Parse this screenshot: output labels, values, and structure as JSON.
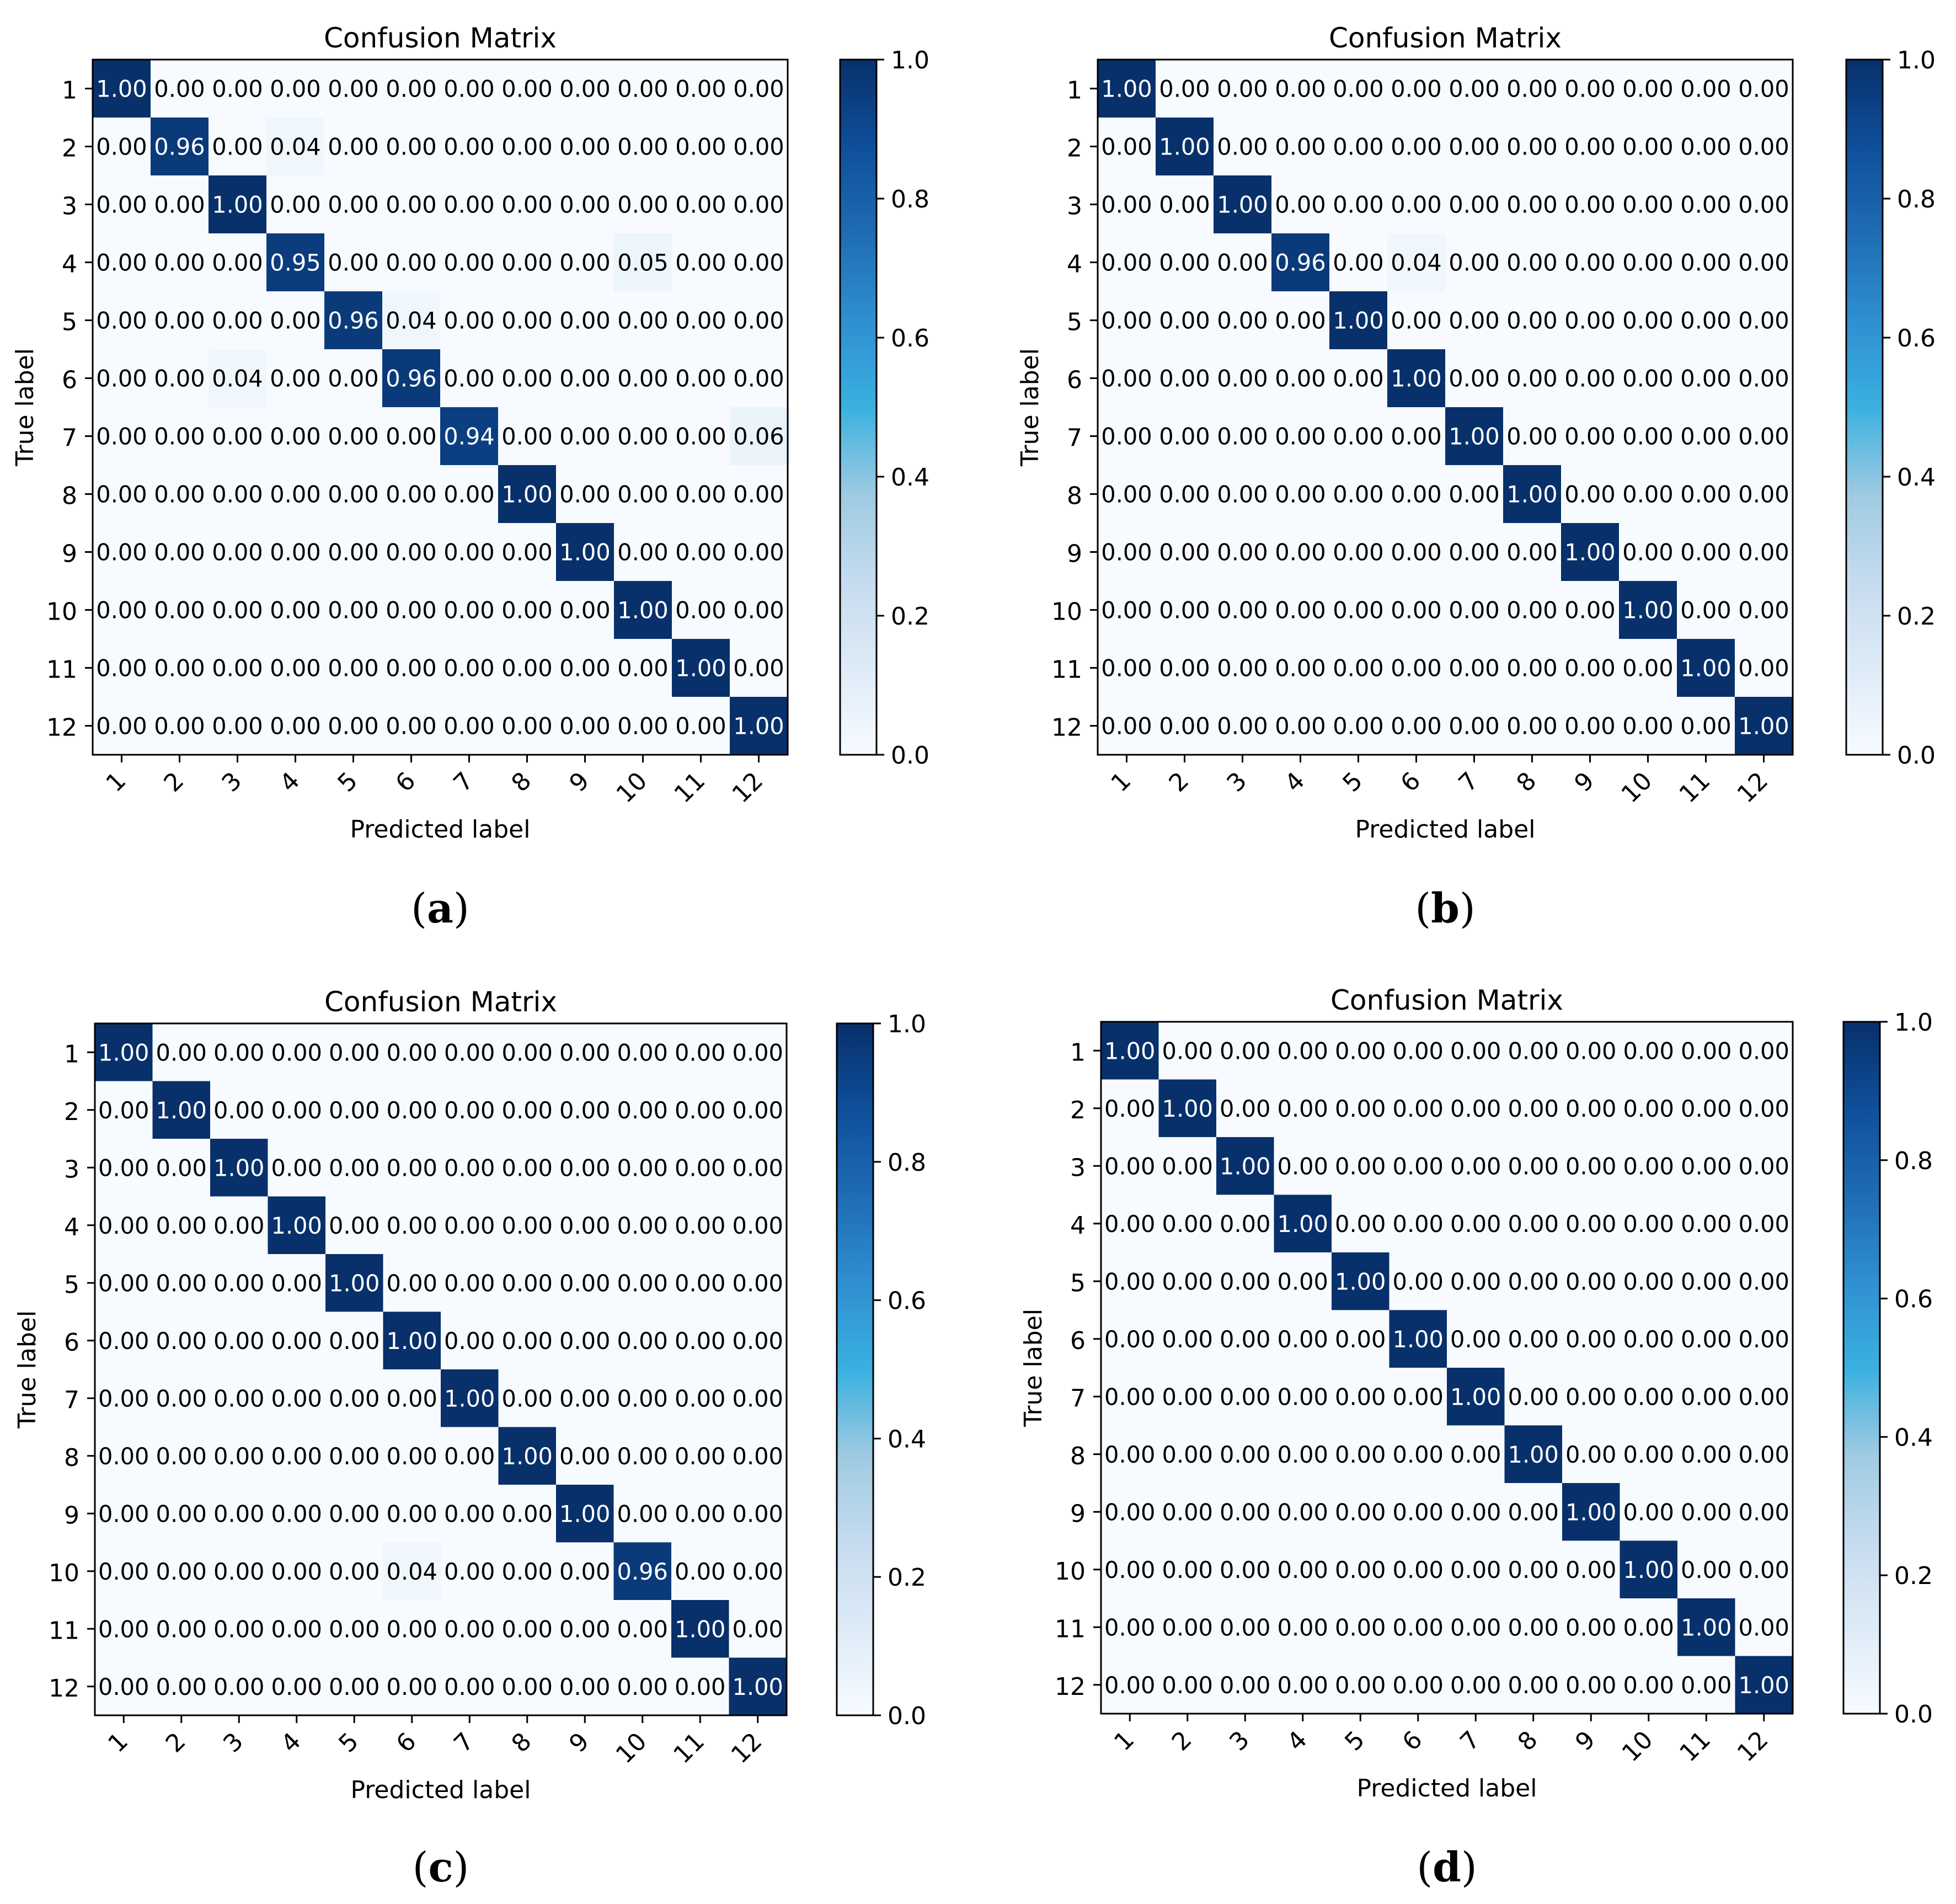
{
  "labels": [
    "1",
    "2",
    "3",
    "4",
    "5",
    "6",
    "7",
    "8",
    "9",
    "10",
    "11",
    "12"
  ],
  "colormap": {
    "name": "Blues",
    "stops": [
      [
        0.0,
        "#f7fbff"
      ],
      [
        0.125,
        "#deebf7"
      ],
      [
        0.25,
        "#c6dbef"
      ],
      [
        0.375,
        "#9ecae1"
      ],
      [
        0.5,
        "#3ab0e0"
      ],
      [
        0.625,
        "#2f8fd0"
      ],
      [
        0.75,
        "#1f6cb4"
      ],
      [
        0.875,
        "#0e4f9a"
      ],
      [
        1.0,
        "#08306b"
      ]
    ],
    "colorbar_ticks": [
      "0.0",
      "0.2",
      "0.4",
      "0.6",
      "0.8",
      "1.0"
    ],
    "text_light": "#ffffff",
    "text_dark": "#000000"
  },
  "chart_data": [
    {
      "type": "heatmap",
      "panel": "a",
      "caption": "a",
      "title": "Confusion Matrix",
      "xlabel": "Predicted label",
      "ylabel": "True label",
      "vrange": [
        0.0,
        1.0
      ],
      "matrix": [
        [
          1.0,
          0.0,
          0.0,
          0.0,
          0.0,
          0.0,
          0.0,
          0.0,
          0.0,
          0.0,
          0.0,
          0.0
        ],
        [
          0.0,
          0.96,
          0.0,
          0.04,
          0.0,
          0.0,
          0.0,
          0.0,
          0.0,
          0.0,
          0.0,
          0.0
        ],
        [
          0.0,
          0.0,
          1.0,
          0.0,
          0.0,
          0.0,
          0.0,
          0.0,
          0.0,
          0.0,
          0.0,
          0.0
        ],
        [
          0.0,
          0.0,
          0.0,
          0.95,
          0.0,
          0.0,
          0.0,
          0.0,
          0.0,
          0.05,
          0.0,
          0.0
        ],
        [
          0.0,
          0.0,
          0.0,
          0.0,
          0.96,
          0.04,
          0.0,
          0.0,
          0.0,
          0.0,
          0.0,
          0.0
        ],
        [
          0.0,
          0.0,
          0.04,
          0.0,
          0.0,
          0.96,
          0.0,
          0.0,
          0.0,
          0.0,
          0.0,
          0.0
        ],
        [
          0.0,
          0.0,
          0.0,
          0.0,
          0.0,
          0.0,
          0.94,
          0.0,
          0.0,
          0.0,
          0.0,
          0.06
        ],
        [
          0.0,
          0.0,
          0.0,
          0.0,
          0.0,
          0.0,
          0.0,
          1.0,
          0.0,
          0.0,
          0.0,
          0.0
        ],
        [
          0.0,
          0.0,
          0.0,
          0.0,
          0.0,
          0.0,
          0.0,
          0.0,
          1.0,
          0.0,
          0.0,
          0.0
        ],
        [
          0.0,
          0.0,
          0.0,
          0.0,
          0.0,
          0.0,
          0.0,
          0.0,
          0.0,
          1.0,
          0.0,
          0.0
        ],
        [
          0.0,
          0.0,
          0.0,
          0.0,
          0.0,
          0.0,
          0.0,
          0.0,
          0.0,
          0.0,
          1.0,
          0.0
        ],
        [
          0.0,
          0.0,
          0.0,
          0.0,
          0.0,
          0.0,
          0.0,
          0.0,
          0.0,
          0.0,
          0.0,
          1.0
        ]
      ]
    },
    {
      "type": "heatmap",
      "panel": "b",
      "caption": "b",
      "title": "Confusion Matrix",
      "xlabel": "Predicted label",
      "ylabel": "True label",
      "vrange": [
        0.0,
        1.0
      ],
      "matrix": [
        [
          1.0,
          0.0,
          0.0,
          0.0,
          0.0,
          0.0,
          0.0,
          0.0,
          0.0,
          0.0,
          0.0,
          0.0
        ],
        [
          0.0,
          1.0,
          0.0,
          0.0,
          0.0,
          0.0,
          0.0,
          0.0,
          0.0,
          0.0,
          0.0,
          0.0
        ],
        [
          0.0,
          0.0,
          1.0,
          0.0,
          0.0,
          0.0,
          0.0,
          0.0,
          0.0,
          0.0,
          0.0,
          0.0
        ],
        [
          0.0,
          0.0,
          0.0,
          0.96,
          0.0,
          0.04,
          0.0,
          0.0,
          0.0,
          0.0,
          0.0,
          0.0
        ],
        [
          0.0,
          0.0,
          0.0,
          0.0,
          1.0,
          0.0,
          0.0,
          0.0,
          0.0,
          0.0,
          0.0,
          0.0
        ],
        [
          0.0,
          0.0,
          0.0,
          0.0,
          0.0,
          1.0,
          0.0,
          0.0,
          0.0,
          0.0,
          0.0,
          0.0
        ],
        [
          0.0,
          0.0,
          0.0,
          0.0,
          0.0,
          0.0,
          1.0,
          0.0,
          0.0,
          0.0,
          0.0,
          0.0
        ],
        [
          0.0,
          0.0,
          0.0,
          0.0,
          0.0,
          0.0,
          0.0,
          1.0,
          0.0,
          0.0,
          0.0,
          0.0
        ],
        [
          0.0,
          0.0,
          0.0,
          0.0,
          0.0,
          0.0,
          0.0,
          0.0,
          1.0,
          0.0,
          0.0,
          0.0
        ],
        [
          0.0,
          0.0,
          0.0,
          0.0,
          0.0,
          0.0,
          0.0,
          0.0,
          0.0,
          1.0,
          0.0,
          0.0
        ],
        [
          0.0,
          0.0,
          0.0,
          0.0,
          0.0,
          0.0,
          0.0,
          0.0,
          0.0,
          0.0,
          1.0,
          0.0
        ],
        [
          0.0,
          0.0,
          0.0,
          0.0,
          0.0,
          0.0,
          0.0,
          0.0,
          0.0,
          0.0,
          0.0,
          1.0
        ]
      ]
    },
    {
      "type": "heatmap",
      "panel": "c",
      "caption": "c",
      "title": "Confusion Matrix",
      "xlabel": "Predicted label",
      "ylabel": "True label",
      "vrange": [
        0.0,
        1.0
      ],
      "matrix": [
        [
          1.0,
          0.0,
          0.0,
          0.0,
          0.0,
          0.0,
          0.0,
          0.0,
          0.0,
          0.0,
          0.0,
          0.0
        ],
        [
          0.0,
          1.0,
          0.0,
          0.0,
          0.0,
          0.0,
          0.0,
          0.0,
          0.0,
          0.0,
          0.0,
          0.0
        ],
        [
          0.0,
          0.0,
          1.0,
          0.0,
          0.0,
          0.0,
          0.0,
          0.0,
          0.0,
          0.0,
          0.0,
          0.0
        ],
        [
          0.0,
          0.0,
          0.0,
          1.0,
          0.0,
          0.0,
          0.0,
          0.0,
          0.0,
          0.0,
          0.0,
          0.0
        ],
        [
          0.0,
          0.0,
          0.0,
          0.0,
          1.0,
          0.0,
          0.0,
          0.0,
          0.0,
          0.0,
          0.0,
          0.0
        ],
        [
          0.0,
          0.0,
          0.0,
          0.0,
          0.0,
          1.0,
          0.0,
          0.0,
          0.0,
          0.0,
          0.0,
          0.0
        ],
        [
          0.0,
          0.0,
          0.0,
          0.0,
          0.0,
          0.0,
          1.0,
          0.0,
          0.0,
          0.0,
          0.0,
          0.0
        ],
        [
          0.0,
          0.0,
          0.0,
          0.0,
          0.0,
          0.0,
          0.0,
          1.0,
          0.0,
          0.0,
          0.0,
          0.0
        ],
        [
          0.0,
          0.0,
          0.0,
          0.0,
          0.0,
          0.0,
          0.0,
          0.0,
          1.0,
          0.0,
          0.0,
          0.0
        ],
        [
          0.0,
          0.0,
          0.0,
          0.0,
          0.0,
          0.04,
          0.0,
          0.0,
          0.0,
          0.96,
          0.0,
          0.0
        ],
        [
          0.0,
          0.0,
          0.0,
          0.0,
          0.0,
          0.0,
          0.0,
          0.0,
          0.0,
          0.0,
          1.0,
          0.0
        ],
        [
          0.0,
          0.0,
          0.0,
          0.0,
          0.0,
          0.0,
          0.0,
          0.0,
          0.0,
          0.0,
          0.0,
          1.0
        ]
      ]
    },
    {
      "type": "heatmap",
      "panel": "d",
      "caption": "d",
      "title": "Confusion Matrix",
      "xlabel": "Predicted label",
      "ylabel": "True label",
      "vrange": [
        0.0,
        1.0
      ],
      "matrix": [
        [
          1.0,
          0.0,
          0.0,
          0.0,
          0.0,
          0.0,
          0.0,
          0.0,
          0.0,
          0.0,
          0.0,
          0.0
        ],
        [
          0.0,
          1.0,
          0.0,
          0.0,
          0.0,
          0.0,
          0.0,
          0.0,
          0.0,
          0.0,
          0.0,
          0.0
        ],
        [
          0.0,
          0.0,
          1.0,
          0.0,
          0.0,
          0.0,
          0.0,
          0.0,
          0.0,
          0.0,
          0.0,
          0.0
        ],
        [
          0.0,
          0.0,
          0.0,
          1.0,
          0.0,
          0.0,
          0.0,
          0.0,
          0.0,
          0.0,
          0.0,
          0.0
        ],
        [
          0.0,
          0.0,
          0.0,
          0.0,
          1.0,
          0.0,
          0.0,
          0.0,
          0.0,
          0.0,
          0.0,
          0.0
        ],
        [
          0.0,
          0.0,
          0.0,
          0.0,
          0.0,
          1.0,
          0.0,
          0.0,
          0.0,
          0.0,
          0.0,
          0.0
        ],
        [
          0.0,
          0.0,
          0.0,
          0.0,
          0.0,
          0.0,
          1.0,
          0.0,
          0.0,
          0.0,
          0.0,
          0.0
        ],
        [
          0.0,
          0.0,
          0.0,
          0.0,
          0.0,
          0.0,
          0.0,
          1.0,
          0.0,
          0.0,
          0.0,
          0.0
        ],
        [
          0.0,
          0.0,
          0.0,
          0.0,
          0.0,
          0.0,
          0.0,
          0.0,
          1.0,
          0.0,
          0.0,
          0.0
        ],
        [
          0.0,
          0.0,
          0.0,
          0.0,
          0.0,
          0.0,
          0.0,
          0.0,
          0.0,
          1.0,
          0.0,
          0.0
        ],
        [
          0.0,
          0.0,
          0.0,
          0.0,
          0.0,
          0.0,
          0.0,
          0.0,
          0.0,
          0.0,
          1.0,
          0.0
        ],
        [
          0.0,
          0.0,
          0.0,
          0.0,
          0.0,
          0.0,
          0.0,
          0.0,
          0.0,
          0.0,
          0.0,
          1.0
        ]
      ]
    }
  ]
}
